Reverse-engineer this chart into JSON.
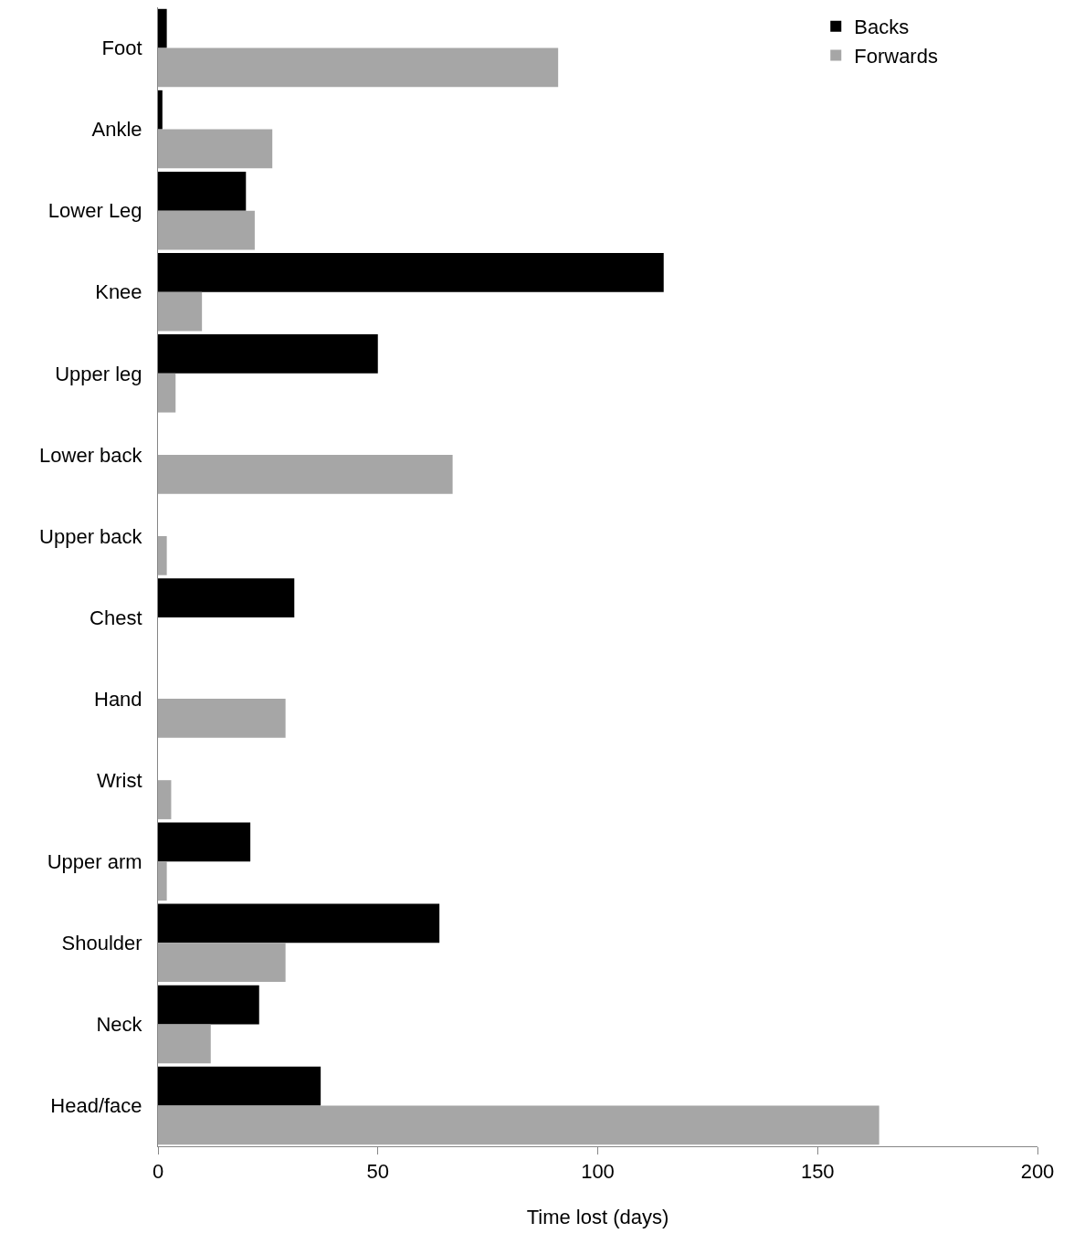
{
  "chart_data": {
    "type": "bar",
    "orientation": "horizontal",
    "xlabel": "Time lost (days)",
    "categories": [
      "Foot",
      "Ankle",
      "Lower Leg",
      "Knee",
      "Upper leg",
      "Lower back",
      "Upper back",
      "Chest",
      "Hand",
      "Wrist",
      "Upper arm",
      "Shoulder",
      "Neck",
      "Head/face"
    ],
    "series": [
      {
        "name": "Backs",
        "color": "#000000",
        "values": [
          2,
          1,
          20,
          115,
          50,
          null,
          null,
          31,
          null,
          null,
          21,
          64,
          23,
          37
        ]
      },
      {
        "name": "Forwards",
        "color": "#a6a6a6",
        "values": [
          91,
          26,
          22,
          10,
          4,
          67,
          2,
          null,
          29,
          3,
          2,
          29,
          12,
          164
        ]
      }
    ],
    "xlim": [
      0,
      200
    ],
    "xticks": [
      0,
      50,
      100,
      150,
      200
    ],
    "grid": false,
    "legend": "top right"
  }
}
